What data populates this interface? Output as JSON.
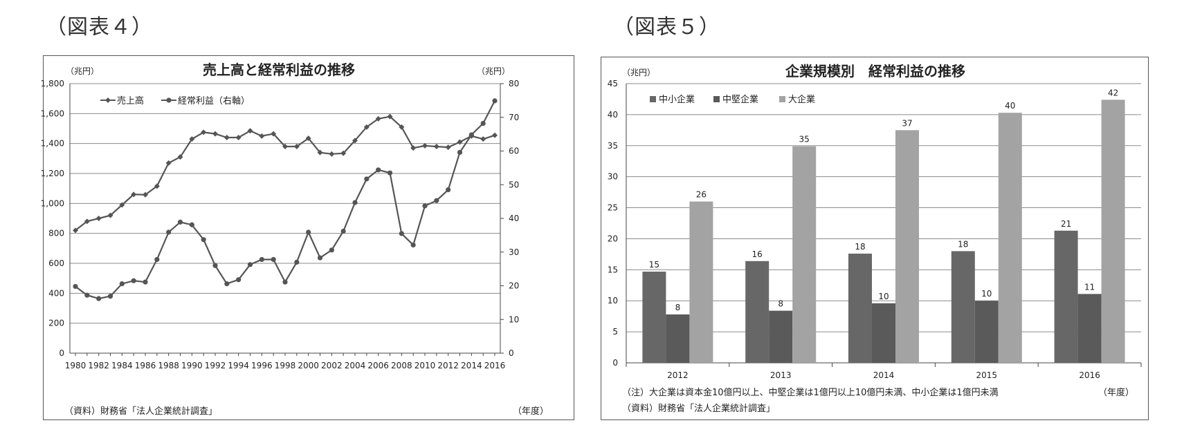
{
  "figure4": {
    "label": "（図表４）",
    "title": "売上高と経常利益の推移",
    "left_unit": "（兆円）",
    "right_unit": "（兆円）",
    "source": "（資料）財務省「法人企業統計調査」",
    "xunit": "（年度）"
  },
  "figure5": {
    "label": "（図表５）",
    "title": "企業規模別　経常利益の推移",
    "y_unit": "（兆円）",
    "note": "（注）大企業は資本金10億円以上、中堅企業は1億円以上10億円未満、中小企業は1億円未満",
    "source": "（資料）財務省「法人企業統計調査」",
    "xunit": "（年度）"
  },
  "chart_data": [
    {
      "type": "line",
      "title": "売上高と経常利益の推移",
      "x": [
        1980,
        1981,
        1982,
        1983,
        1984,
        1985,
        1986,
        1987,
        1988,
        1989,
        1990,
        1991,
        1992,
        1993,
        1994,
        1995,
        1996,
        1997,
        1998,
        1999,
        2000,
        2001,
        2002,
        2003,
        2004,
        2005,
        2006,
        2007,
        2008,
        2009,
        2010,
        2011,
        2012,
        2013,
        2014,
        2015,
        2016
      ],
      "x_ticks": [
        "1980",
        "1982",
        "1984",
        "1986",
        "1988",
        "1990",
        "1992",
        "1994",
        "1996",
        "1998",
        "2000",
        "2002",
        "2004",
        "2006",
        "2008",
        "2010",
        "2012",
        "2014",
        "2016"
      ],
      "ylim_left": [
        0,
        1800
      ],
      "ylim_right": [
        0,
        80
      ],
      "y_ticks_left": [
        "0",
        "200",
        "400",
        "600",
        "800",
        "1,000",
        "1,200",
        "1,400",
        "1,600",
        "1,800"
      ],
      "y_ticks_right": [
        "0",
        "10",
        "20",
        "30",
        "40",
        "50",
        "60",
        "70",
        "80"
      ],
      "legend_position": "top-left",
      "grid": true,
      "series": [
        {
          "name": "売上高",
          "axis": "left",
          "marker": "diamond",
          "color": "#555555",
          "values": [
            820,
            880,
            900,
            920,
            990,
            1060,
            1058,
            1115,
            1270,
            1310,
            1430,
            1475,
            1465,
            1440,
            1440,
            1485,
            1450,
            1465,
            1380,
            1380,
            1435,
            1340,
            1330,
            1335,
            1420,
            1510,
            1565,
            1580,
            1510,
            1370,
            1385,
            1380,
            1375,
            1410,
            1450,
            1430,
            1455
          ]
        },
        {
          "name": "経常利益（右軸）",
          "axis": "right",
          "marker": "circle",
          "color": "#555555",
          "values": [
            19.8,
            17.2,
            16.2,
            16.9,
            20.6,
            21.5,
            21.1,
            27.8,
            35.9,
            38.9,
            38.1,
            33.7,
            26.0,
            20.6,
            21.8,
            26.3,
            27.8,
            27.8,
            21.1,
            27.0,
            35.9,
            28.3,
            30.6,
            36.2,
            44.7,
            51.7,
            54.4,
            53.5,
            35.5,
            32.1,
            43.7,
            45.3,
            48.5,
            59.6,
            64.8,
            68.2,
            74.9
          ]
        }
      ]
    },
    {
      "type": "bar",
      "title": "企業規模別　経常利益の推移",
      "categories": [
        "2012",
        "2013",
        "2014",
        "2015",
        "2016"
      ],
      "ylim": [
        0,
        45
      ],
      "y_ticks": [
        "0",
        "5",
        "10",
        "15",
        "20",
        "25",
        "30",
        "35",
        "40",
        "45"
      ],
      "legend_position": "top-left",
      "grid": true,
      "series": [
        {
          "name": "中小企業",
          "color": "#676767",
          "values": [
            14.7,
            16.4,
            17.6,
            18.0,
            21.3
          ],
          "labels": [
            "15",
            "16",
            "18",
            "18",
            "21"
          ]
        },
        {
          "name": "中堅企業",
          "color": "#5a5a5a",
          "values": [
            7.8,
            8.4,
            9.6,
            10.0,
            11.1
          ],
          "labels": [
            "8",
            "8",
            "10",
            "10",
            "11"
          ]
        },
        {
          "name": "大企業",
          "color": "#a3a3a3",
          "values": [
            26.0,
            34.9,
            37.5,
            40.3,
            42.4
          ],
          "labels": [
            "26",
            "35",
            "37",
            "40",
            "42"
          ]
        }
      ]
    }
  ]
}
